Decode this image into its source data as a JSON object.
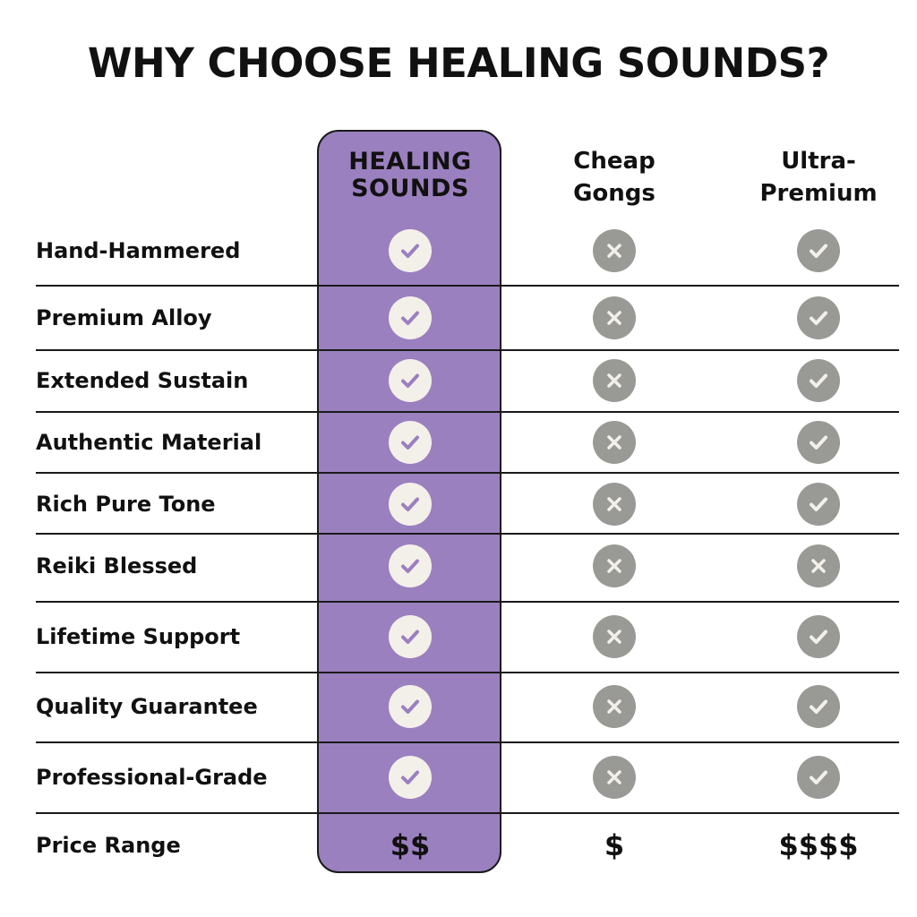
{
  "title": "WHY CHOOSE HEALING SOUNDS?",
  "colors": {
    "highlight": "#9b80bf",
    "check_on_highlight_bg": "#f3f0ea",
    "check_on_highlight_mark": "#9b80bf",
    "neutral_icon_bg": "#999a96",
    "neutral_icon_mark": "#f3f0ea"
  },
  "columns": [
    "HEALING SOUNDS",
    "Cheap Gongs",
    "Ultra-Premium"
  ],
  "rows": [
    {
      "feature": "Hand-Hammered",
      "values": [
        "check",
        "cross",
        "check"
      ]
    },
    {
      "feature": "Premium Alloy",
      "values": [
        "check",
        "cross",
        "check"
      ]
    },
    {
      "feature": "Extended Sustain",
      "values": [
        "check",
        "cross",
        "check"
      ]
    },
    {
      "feature": "Authentic Material",
      "values": [
        "check",
        "cross",
        "check"
      ]
    },
    {
      "feature": "Rich Pure Tone",
      "values": [
        "check",
        "cross",
        "check"
      ]
    },
    {
      "feature": "Reiki Blessed",
      "values": [
        "check",
        "cross",
        "cross"
      ]
    },
    {
      "feature": "Lifetime Support",
      "values": [
        "check",
        "cross",
        "check"
      ]
    },
    {
      "feature": "Quality Guarantee",
      "values": [
        "check",
        "cross",
        "check"
      ]
    },
    {
      "feature": "Professional-Grade",
      "values": [
        "check",
        "cross",
        "check"
      ]
    }
  ],
  "price_row": {
    "feature": "Price Range",
    "values": [
      "$$",
      "$",
      "$$$$"
    ]
  }
}
